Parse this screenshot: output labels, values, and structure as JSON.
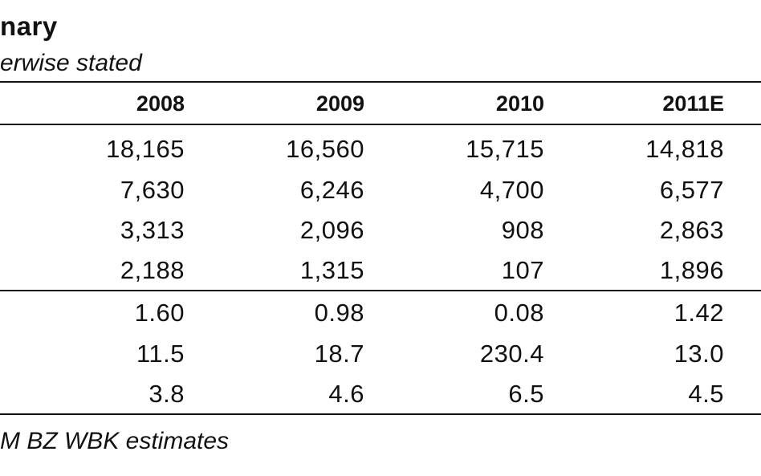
{
  "header": {
    "title": "nary",
    "subtitle": "erwise stated"
  },
  "table": {
    "columns": [
      "2008",
      "2009",
      "2010",
      "2011E"
    ],
    "rows": [
      [
        "18,165",
        "16,560",
        "15,715",
        "14,818"
      ],
      [
        "7,630",
        "6,246",
        "4,700",
        "6,577"
      ],
      [
        "3,313",
        "2,096",
        "908",
        "2,863"
      ],
      [
        "2,188",
        "1,315",
        "107",
        "1,896"
      ],
      [
        "1.60",
        "0.98",
        "0.08",
        "1.42"
      ],
      [
        "11.5",
        "18.7",
        "230.4",
        "13.0"
      ],
      [
        "3.8",
        "4.6",
        "6.5",
        "4.5"
      ]
    ]
  },
  "footer": {
    "source": "M BZ WBK estimates"
  }
}
